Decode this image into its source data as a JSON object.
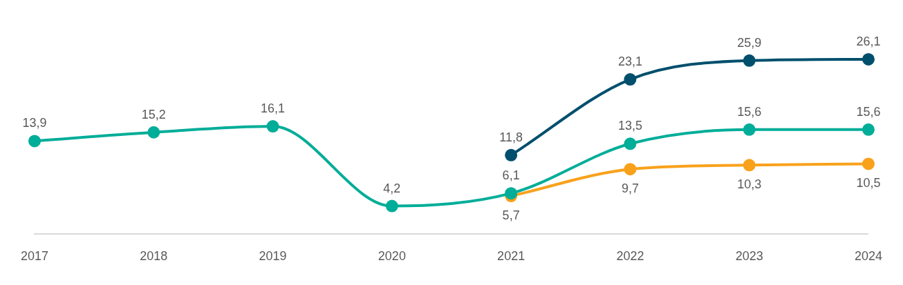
{
  "chart_data": {
    "type": "line",
    "categories": [
      "2017",
      "2018",
      "2019",
      "2020",
      "2021",
      "2022",
      "2023",
      "2024"
    ],
    "series": [
      {
        "color": "#00ad98",
        "values": [
          13.9,
          15.2,
          16.1,
          4.2,
          6.1,
          13.5,
          15.6,
          15.6
        ],
        "value_labels": [
          "13,9",
          "15,2",
          "16,1",
          "4,2",
          "6,1",
          "13,5",
          "15,6",
          "15,6"
        ]
      },
      {
        "color": "#004f6d",
        "values": [
          null,
          null,
          null,
          null,
          11.8,
          23.1,
          25.9,
          26.1
        ],
        "value_labels": [
          null,
          null,
          null,
          null,
          "11,8",
          "23,1",
          "25,9",
          "26,1"
        ]
      },
      {
        "color": "#f9a11b",
        "values": [
          null,
          null,
          null,
          null,
          5.7,
          9.7,
          10.3,
          10.5
        ],
        "value_labels": [
          null,
          null,
          null,
          null,
          "5,7",
          "9,7",
          "10,3",
          "10,5"
        ]
      }
    ],
    "grid": false,
    "legend": false,
    "marker": "circle",
    "line_style": "solid"
  }
}
